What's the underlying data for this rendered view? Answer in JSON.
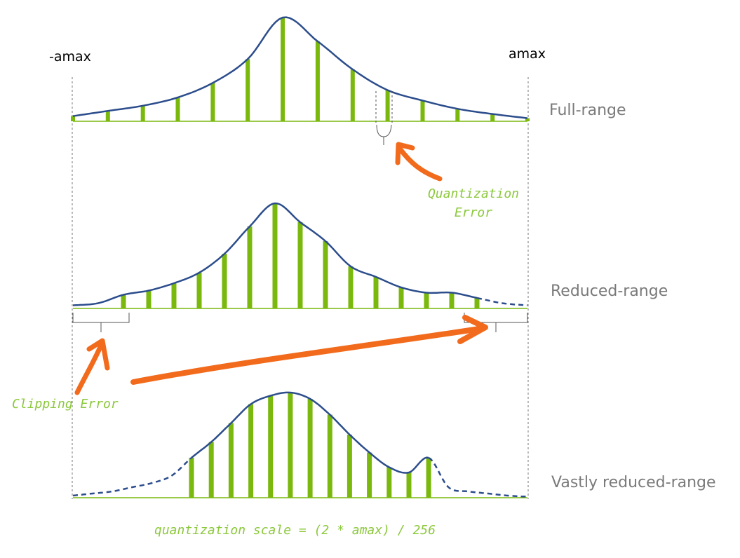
{
  "axis": {
    "left_label": "-amax",
    "right_label": "amax"
  },
  "panels": [
    {
      "label": "Full-range",
      "bars": [
        0.05,
        0.1,
        0.15,
        0.23,
        0.37,
        0.6,
        1.0,
        0.77,
        0.5,
        0.3,
        0.2,
        0.12,
        0.07,
        0.03
      ],
      "bars_from": 0,
      "bars_to": 13,
      "solid_from": 0,
      "solid_to": 13
    },
    {
      "label": "Reduced-range",
      "bars": [
        0.03,
        0.05,
        0.13,
        0.17,
        0.24,
        0.34,
        0.52,
        0.78,
        1.0,
        0.82,
        0.64,
        0.4,
        0.3,
        0.2,
        0.15,
        0.15,
        0.1,
        0.05,
        0.03
      ],
      "bars_from": 2,
      "bars_to": 16,
      "solid_from": 0,
      "solid_to": 16
    },
    {
      "label": "Vastly reduced-range",
      "bars": [
        0.02,
        0.04,
        0.06,
        0.1,
        0.14,
        0.21,
        0.38,
        0.53,
        0.71,
        0.89,
        0.97,
        1.0,
        0.94,
        0.79,
        0.6,
        0.43,
        0.29,
        0.24,
        0.38,
        0.1,
        0.06,
        0.04,
        0.02,
        0.01
      ],
      "bars_from": 6,
      "bars_to": 18,
      "solid_from": 6,
      "solid_to": 18
    }
  ],
  "annotations": {
    "quantization_error": [
      "Quantization",
      "Error"
    ],
    "clipping_error": "Clipping Error"
  },
  "formula": "quantization scale = (2 * amax) / 256",
  "colors": {
    "bar": "#7ab80e",
    "curve": "#2c4d8c",
    "arrow": "#f26a1b",
    "handwriting": "#8cc83c",
    "label": "#7a7a7a"
  }
}
